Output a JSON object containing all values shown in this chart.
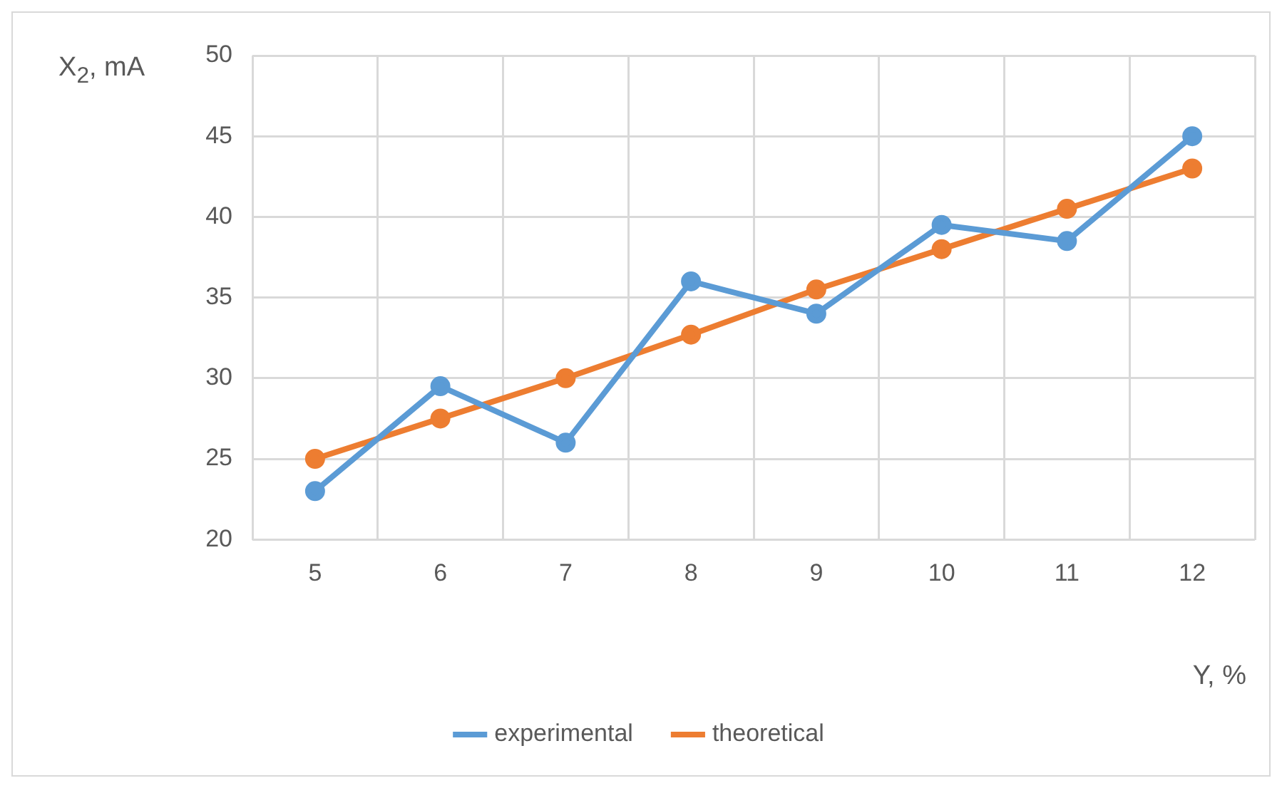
{
  "chart_data": {
    "type": "line",
    "xlabel": "Y, %",
    "ylabel": "X$_{2}$, mA",
    "categories": [
      "5",
      "6",
      "7",
      "8",
      "9",
      "10",
      "11",
      "12"
    ],
    "series": [
      {
        "name": "experimental",
        "color": "#5b9bd5",
        "values": [
          23,
          29.5,
          26,
          36,
          34,
          39.5,
          38.5,
          45
        ]
      },
      {
        "name": "theoretical",
        "color": "#ed7d31",
        "values": [
          25,
          27.5,
          30,
          32.7,
          35.5,
          38,
          40.5,
          43
        ]
      }
    ],
    "ylim": [
      20,
      50
    ],
    "yticks": [
      20,
      25,
      30,
      35,
      40,
      45,
      50
    ],
    "grid": true,
    "legend": "bottom",
    "marker": "circle",
    "line_style": "solid"
  }
}
